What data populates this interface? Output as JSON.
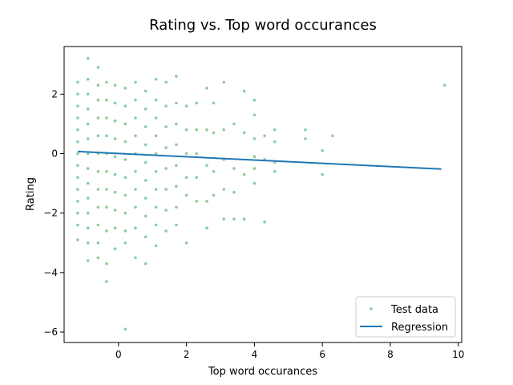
{
  "chart_data": {
    "type": "scatter",
    "title": "Rating vs. Top word occurances",
    "xlabel": "Top word occurances",
    "ylabel": "Rating",
    "xlim": [
      -1.6,
      10.1
    ],
    "ylim": [
      -6.35,
      3.6
    ],
    "x_ticks": [
      0,
      2,
      4,
      6,
      8,
      10
    ],
    "x_tick_labels": [
      "0",
      "2",
      "4",
      "6",
      "8",
      "10"
    ],
    "y_ticks": [
      -6,
      -4,
      -2,
      0,
      2
    ],
    "y_tick_labels": [
      "−6",
      "−4",
      "−2",
      "0",
      "2"
    ],
    "grid": false,
    "legend": {
      "position": "lower-right"
    },
    "series": [
      {
        "name": "Test data",
        "kind": "scatter",
        "color": "#8dcc9b",
        "points": [
          [
            -1.2,
            2.4
          ],
          [
            -1.2,
            2.0
          ],
          [
            -1.2,
            1.6
          ],
          [
            -1.2,
            1.2
          ],
          [
            -1.2,
            0.8
          ],
          [
            -1.2,
            0.4
          ],
          [
            -1.2,
            0.0
          ],
          [
            -1.2,
            -0.4
          ],
          [
            -1.2,
            -0.8
          ],
          [
            -1.2,
            -1.2
          ],
          [
            -1.2,
            -1.6
          ],
          [
            -1.2,
            -2.0
          ],
          [
            -1.2,
            -2.4
          ],
          [
            -1.2,
            -2.9
          ],
          [
            -0.9,
            3.2
          ],
          [
            -0.9,
            2.5
          ],
          [
            -0.9,
            2.0
          ],
          [
            -0.9,
            1.5
          ],
          [
            -0.9,
            1.0
          ],
          [
            -0.9,
            0.5
          ],
          [
            -0.9,
            0.0
          ],
          [
            -0.9,
            -0.5
          ],
          [
            -0.9,
            -1.0
          ],
          [
            -0.9,
            -1.5
          ],
          [
            -0.9,
            -2.0
          ],
          [
            -0.9,
            -2.5
          ],
          [
            -0.9,
            -3.0
          ],
          [
            -0.9,
            -3.6
          ],
          [
            -0.6,
            2.9
          ],
          [
            -0.6,
            2.3
          ],
          [
            -0.6,
            1.8
          ],
          [
            -0.6,
            1.2
          ],
          [
            -0.6,
            0.6
          ],
          [
            -0.6,
            0.0
          ],
          [
            -0.6,
            -0.6
          ],
          [
            -0.6,
            -1.2
          ],
          [
            -0.6,
            -1.8
          ],
          [
            -0.6,
            -2.4
          ],
          [
            -0.6,
            -3.0
          ],
          [
            -0.6,
            -3.5
          ],
          [
            -0.35,
            2.4
          ],
          [
            -0.35,
            1.8
          ],
          [
            -0.35,
            1.2
          ],
          [
            -0.35,
            0.6
          ],
          [
            -0.35,
            0.0
          ],
          [
            -0.35,
            -0.6
          ],
          [
            -0.35,
            -1.2
          ],
          [
            -0.35,
            -1.8
          ],
          [
            -0.35,
            -2.6
          ],
          [
            -0.35,
            -3.7
          ],
          [
            -0.35,
            -4.3
          ],
          [
            -0.1,
            2.3
          ],
          [
            -0.1,
            1.7
          ],
          [
            -0.1,
            1.1
          ],
          [
            -0.1,
            0.5
          ],
          [
            -0.1,
            -0.1
          ],
          [
            -0.1,
            -0.7
          ],
          [
            -0.1,
            -1.3
          ],
          [
            -0.1,
            -1.9
          ],
          [
            -0.1,
            -2.5
          ],
          [
            -0.1,
            -3.2
          ],
          [
            0.2,
            2.2
          ],
          [
            0.2,
            1.6
          ],
          [
            0.2,
            1.0
          ],
          [
            0.2,
            0.4
          ],
          [
            0.2,
            -0.2
          ],
          [
            0.2,
            -0.8
          ],
          [
            0.2,
            -1.4
          ],
          [
            0.2,
            -2.0
          ],
          [
            0.2,
            -2.6
          ],
          [
            0.2,
            -3.0
          ],
          [
            0.2,
            -5.9
          ],
          [
            0.5,
            2.4
          ],
          [
            0.5,
            1.8
          ],
          [
            0.5,
            1.2
          ],
          [
            0.5,
            0.6
          ],
          [
            0.5,
            0.0
          ],
          [
            0.5,
            -0.6
          ],
          [
            0.5,
            -1.2
          ],
          [
            0.5,
            -1.8
          ],
          [
            0.5,
            -2.5
          ],
          [
            0.5,
            -3.5
          ],
          [
            0.8,
            2.1
          ],
          [
            0.8,
            1.5
          ],
          [
            0.8,
            0.9
          ],
          [
            0.8,
            0.3
          ],
          [
            0.8,
            -0.3
          ],
          [
            0.8,
            -0.9
          ],
          [
            0.8,
            -1.5
          ],
          [
            0.8,
            -2.1
          ],
          [
            0.8,
            -2.8
          ],
          [
            0.8,
            -3.7
          ],
          [
            1.1,
            2.5
          ],
          [
            1.1,
            1.8
          ],
          [
            1.1,
            1.2
          ],
          [
            1.1,
            0.6
          ],
          [
            1.1,
            0.0
          ],
          [
            1.1,
            -0.6
          ],
          [
            1.1,
            -1.2
          ],
          [
            1.1,
            -1.8
          ],
          [
            1.1,
            -2.4
          ],
          [
            1.1,
            -3.1
          ],
          [
            1.4,
            2.4
          ],
          [
            1.4,
            1.6
          ],
          [
            1.4,
            0.9
          ],
          [
            1.4,
            0.2
          ],
          [
            1.4,
            -0.5
          ],
          [
            1.4,
            -1.2
          ],
          [
            1.4,
            -1.9
          ],
          [
            1.4,
            -2.6
          ],
          [
            1.7,
            2.6
          ],
          [
            1.7,
            1.7
          ],
          [
            1.7,
            1.0
          ],
          [
            1.7,
            0.3
          ],
          [
            1.7,
            -0.4
          ],
          [
            1.7,
            -1.1
          ],
          [
            1.7,
            -1.8
          ],
          [
            1.7,
            -2.4
          ],
          [
            2.0,
            1.6
          ],
          [
            2.0,
            0.8
          ],
          [
            2.0,
            0.0
          ],
          [
            2.0,
            -0.8
          ],
          [
            2.0,
            -1.4
          ],
          [
            2.0,
            -3.0
          ],
          [
            2.3,
            1.7
          ],
          [
            2.3,
            0.8
          ],
          [
            2.3,
            0.0
          ],
          [
            2.3,
            -0.8
          ],
          [
            2.3,
            -1.6
          ],
          [
            2.6,
            2.2
          ],
          [
            2.6,
            0.8
          ],
          [
            2.6,
            -0.4
          ],
          [
            2.6,
            -1.6
          ],
          [
            2.6,
            -2.5
          ],
          [
            2.8,
            1.7
          ],
          [
            2.8,
            0.7
          ],
          [
            2.8,
            -0.6
          ],
          [
            2.8,
            -1.4
          ],
          [
            3.1,
            2.4
          ],
          [
            3.1,
            0.8
          ],
          [
            3.1,
            -0.2
          ],
          [
            3.1,
            -1.2
          ],
          [
            3.1,
            -2.2
          ],
          [
            3.4,
            1.0
          ],
          [
            3.4,
            -0.5
          ],
          [
            3.4,
            -1.3
          ],
          [
            3.4,
            -2.2
          ],
          [
            3.7,
            2.1
          ],
          [
            3.7,
            0.7
          ],
          [
            3.7,
            -0.7
          ],
          [
            3.7,
            -2.2
          ],
          [
            4.0,
            1.8
          ],
          [
            4.0,
            1.3
          ],
          [
            4.0,
            0.5
          ],
          [
            4.0,
            -0.1
          ],
          [
            4.0,
            -0.5
          ],
          [
            4.0,
            -1.0
          ],
          [
            4.3,
            0.6
          ],
          [
            4.3,
            -0.2
          ],
          [
            4.3,
            -2.3
          ],
          [
            4.6,
            0.8
          ],
          [
            4.6,
            0.4
          ],
          [
            4.6,
            -0.3
          ],
          [
            4.6,
            -0.6
          ],
          [
            5.5,
            0.8
          ],
          [
            5.5,
            0.5
          ],
          [
            6.0,
            0.1
          ],
          [
            6.0,
            -0.7
          ],
          [
            6.3,
            0.6
          ],
          [
            9.6,
            2.3
          ]
        ]
      },
      {
        "name": "Regression",
        "kind": "line",
        "color": "#1f77b4",
        "x": [
          -1.2,
          9.5
        ],
        "y": [
          0.07,
          -0.52
        ]
      }
    ]
  }
}
